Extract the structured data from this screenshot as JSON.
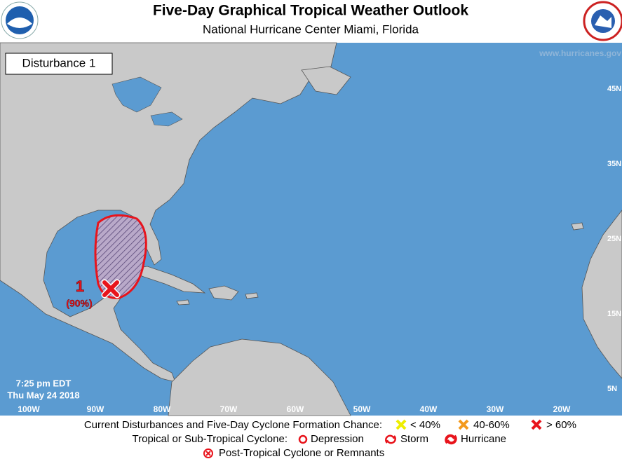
{
  "header": {
    "title": "Five-Day Graphical Tropical Weather Outlook",
    "subtitle": "National Hurricane Center  Miami, Florida"
  },
  "map": {
    "panel_label": "Disturbance 1",
    "watermark": "www.hurricanes.gov",
    "latitude_labels": [
      "45N",
      "35N",
      "25N",
      "15N",
      "5N"
    ],
    "longitude_labels": [
      "100W",
      "90W",
      "80W",
      "70W",
      "60W",
      "50W",
      "40W",
      "30W",
      "20W"
    ],
    "timestamp": [
      "7:25 pm EDT",
      "Thu May 24 2018"
    ],
    "disturbances": [
      {
        "number": "1",
        "chance": "(90%)"
      }
    ]
  },
  "legend": {
    "row1": {
      "label": "Current Disturbances and Five-Day Cyclone Formation Chance:",
      "items": [
        "< 40%",
        "40-60%",
        "> 60%"
      ]
    },
    "row2": {
      "label": "Tropical or Sub-Tropical Cyclone:",
      "items": [
        "Depression",
        "Storm",
        "Hurricane"
      ]
    },
    "row3": {
      "items": [
        "Post-Tropical Cyclone or Remnants"
      ]
    }
  }
}
